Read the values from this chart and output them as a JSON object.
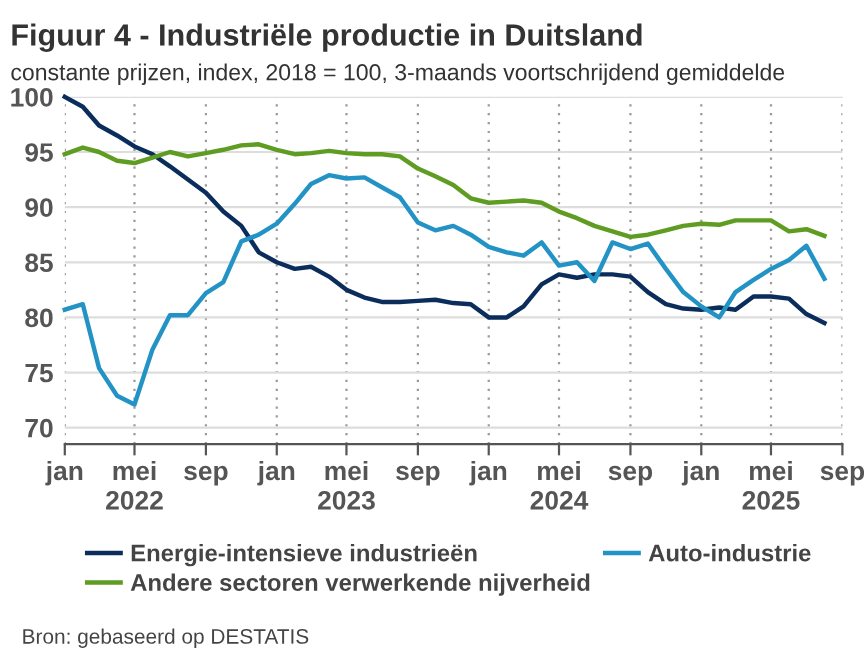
{
  "chart_data": {
    "type": "line",
    "title": "Figuur 4 - Industriële productie in Duitsland",
    "subtitle": "constante prijzen, index, 2018 = 100, 3-maands voortschrijdend gemiddelde",
    "x": [
      "2022-01",
      "2022-02",
      "2022-03",
      "2022-04",
      "2022-05",
      "2022-06",
      "2022-07",
      "2022-08",
      "2022-09",
      "2022-10",
      "2022-11",
      "2022-12",
      "2023-01",
      "2023-02",
      "2023-03",
      "2023-04",
      "2023-05",
      "2023-06",
      "2023-07",
      "2023-08",
      "2023-09",
      "2023-10",
      "2023-11",
      "2023-12",
      "2024-01",
      "2024-02",
      "2024-03",
      "2024-04",
      "2024-05",
      "2024-06",
      "2024-07",
      "2024-08",
      "2024-09",
      "2024-10",
      "2024-11",
      "2024-12",
      "2025-01",
      "2025-02",
      "2025-03",
      "2025-04",
      "2025-05",
      "2025-06",
      "2025-07",
      "2025-08"
    ],
    "series": [
      {
        "name": "Energie-intensieve industrieën",
        "color": "#0b2d5b",
        "values": [
          100,
          99.1,
          97.4,
          96.5,
          95.5,
          94.8,
          93.7,
          92.5,
          91.3,
          89.6,
          88.3,
          85.9,
          85.0,
          84.4,
          84.6,
          83.7,
          82.5,
          81.8,
          81.4,
          81.4,
          81.5,
          81.6,
          81.3,
          81.2,
          80.0,
          80.0,
          81.0,
          83.0,
          83.9,
          83.6,
          83.9,
          83.9,
          83.7,
          82.3,
          81.2,
          80.8,
          80.7,
          80.9,
          80.7,
          81.9,
          81.9,
          81.7,
          80.3,
          79.5
        ]
      },
      {
        "name": "Auto-industrie",
        "color": "#2393c6",
        "values": [
          80.7,
          81.2,
          75.4,
          72.9,
          72.1,
          77.1,
          80.2,
          80.2,
          82.2,
          83.2,
          86.9,
          87.5,
          88.5,
          90.3,
          92.1,
          92.9,
          92.6,
          92.7,
          91.8,
          90.9,
          88.6,
          87.9,
          88.3,
          87.5,
          86.4,
          85.9,
          85.6,
          86.8,
          84.7,
          85.0,
          83.3,
          86.8,
          86.2,
          86.7,
          84.4,
          82.3,
          81.0,
          80.0,
          82.3,
          83.4,
          84.4,
          85.2,
          86.5,
          83.5
        ]
      },
      {
        "name": "Andere sectoren verwerkende nijverheid",
        "color": "#5e9c22",
        "values": [
          94.8,
          95.4,
          95.0,
          94.2,
          94.0,
          94.5,
          95.0,
          94.6,
          94.9,
          95.2,
          95.6,
          95.7,
          95.2,
          94.8,
          94.9,
          95.1,
          94.9,
          94.8,
          94.8,
          94.6,
          93.5,
          92.8,
          92.0,
          90.8,
          90.4,
          90.5,
          90.6,
          90.4,
          89.6,
          89.0,
          88.3,
          87.8,
          87.3,
          87.5,
          87.9,
          88.3,
          88.5,
          88.4,
          88.8,
          88.8,
          88.8,
          87.8,
          88.0,
          87.4
        ]
      }
    ],
    "xlim": [
      "2022-01",
      "2025-09"
    ],
    "xticks": [
      {
        "value": "2022-01",
        "label": "jan"
      },
      {
        "value": "2022-05",
        "label": "mei\n2022"
      },
      {
        "value": "2022-09",
        "label": "sep"
      },
      {
        "value": "2023-01",
        "label": "jan"
      },
      {
        "value": "2023-05",
        "label": "mei\n2023"
      },
      {
        "value": "2023-09",
        "label": "sep"
      },
      {
        "value": "2024-01",
        "label": "jan"
      },
      {
        "value": "2024-05",
        "label": "mei\n2024"
      },
      {
        "value": "2024-09",
        "label": "sep"
      },
      {
        "value": "2025-01",
        "label": "jan"
      },
      {
        "value": "2025-05",
        "label": "mei\n2025"
      },
      {
        "value": "2025-09",
        "label": "sep"
      }
    ],
    "ylim": [
      68.5,
      100
    ],
    "yticks": [
      70,
      75,
      80,
      85,
      90,
      95,
      100
    ],
    "grid": true,
    "legend": "bottom",
    "marker": "none",
    "line_style": "solid",
    "annotations": [
      "Bron: gebaseerd op DESTATIS"
    ]
  }
}
